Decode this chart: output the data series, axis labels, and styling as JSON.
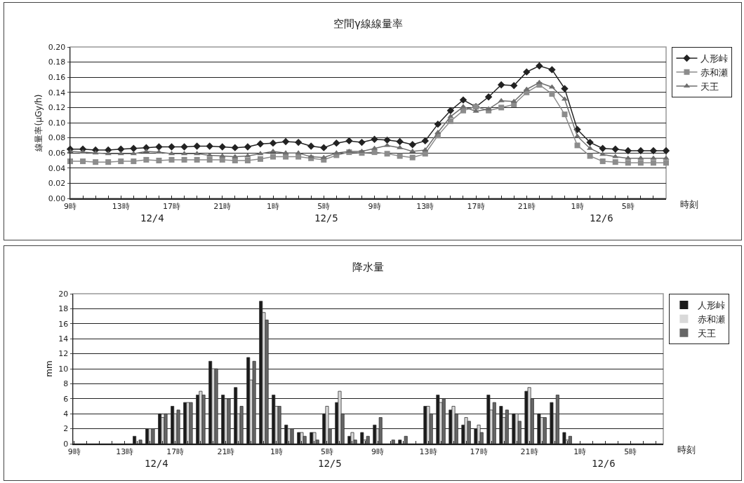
{
  "chart_data": [
    {
      "type": "line",
      "title": "空間γ線線量率",
      "ylabel": "線量率(μGy/h)",
      "xlabel": "時刻",
      "categories": [
        "9時",
        null,
        null,
        null,
        "13時",
        null,
        null,
        null,
        "17時",
        null,
        null,
        null,
        "21時",
        null,
        null,
        null,
        "1時",
        null,
        null,
        null,
        "5時",
        null,
        null,
        null,
        "9時",
        null,
        null,
        null,
        "13時",
        null,
        null,
        null,
        "17時",
        null,
        null,
        null,
        "21時",
        null,
        null,
        null,
        "1時",
        null,
        null,
        null,
        "5時",
        null,
        null,
        null
      ],
      "annotations": [
        "12/4",
        "12/5",
        "12/6"
      ],
      "ylim": [
        0,
        0.2
      ],
      "yticks": [
        {
          "value": 0,
          "label": "0.00"
        },
        {
          "value": 0.02,
          "label": "0.02"
        },
        {
          "value": 0.04,
          "label": "0.04"
        },
        {
          "value": 0.06,
          "label": "0.06"
        },
        {
          "value": 0.08,
          "label": "0.08"
        },
        {
          "value": 0.1,
          "label": "0.10"
        },
        {
          "value": 0.12,
          "label": "0.12"
        },
        {
          "value": 0.14,
          "label": "0.14"
        },
        {
          "value": 0.16,
          "label": "0.16"
        },
        {
          "value": 0.18,
          "label": "0.18"
        },
        {
          "value": 0.2,
          "label": "0.20"
        }
      ],
      "grid": "y",
      "legend": "right",
      "line_style": "solid",
      "series": [
        {
          "name": "人形峠",
          "color": "#222222",
          "marker": "diamond",
          "values": [
            0.065,
            0.065,
            0.064,
            0.064,
            0.065,
            0.066,
            0.067,
            0.068,
            0.068,
            0.068,
            0.069,
            0.069,
            0.068,
            0.067,
            0.068,
            0.072,
            0.073,
            0.075,
            0.074,
            0.069,
            0.067,
            0.073,
            0.076,
            0.074,
            0.078,
            0.077,
            0.075,
            0.071,
            0.076,
            0.098,
            0.116,
            0.13,
            0.121,
            0.134,
            0.15,
            0.149,
            0.167,
            0.175,
            0.17,
            0.145,
            0.091,
            0.074,
            0.066,
            0.065,
            0.063,
            0.063,
            0.063,
            0.063
          ]
        },
        {
          "name": "赤和瀬",
          "color": "#8c8c8c",
          "marker": "square",
          "values": [
            0.049,
            0.049,
            0.048,
            0.048,
            0.049,
            0.049,
            0.051,
            0.05,
            0.051,
            0.051,
            0.051,
            0.051,
            0.051,
            0.05,
            0.05,
            0.052,
            0.055,
            0.055,
            0.055,
            0.053,
            0.051,
            0.057,
            0.061,
            0.06,
            0.061,
            0.059,
            0.056,
            0.054,
            0.059,
            0.083,
            0.102,
            0.116,
            0.121,
            0.116,
            0.12,
            0.124,
            0.14,
            0.15,
            0.138,
            0.111,
            0.07,
            0.056,
            0.049,
            0.048,
            0.047,
            0.047,
            0.047,
            0.047
          ]
        },
        {
          "name": "天王",
          "color": "#6e6e6e",
          "marker": "triangle",
          "values": [
            0.062,
            0.061,
            0.06,
            0.059,
            0.059,
            0.059,
            0.062,
            0.061,
            0.059,
            0.059,
            0.059,
            0.057,
            0.056,
            0.055,
            0.056,
            0.059,
            0.062,
            0.06,
            0.06,
            0.055,
            0.054,
            0.06,
            0.062,
            0.062,
            0.066,
            0.07,
            0.067,
            0.062,
            0.064,
            0.087,
            0.108,
            0.121,
            0.115,
            0.118,
            0.129,
            0.128,
            0.144,
            0.153,
            0.147,
            0.131,
            0.082,
            0.066,
            0.058,
            0.055,
            0.053,
            0.053,
            0.053,
            0.053
          ]
        }
      ]
    },
    {
      "type": "bar",
      "title": "降水量",
      "ylabel": "mm",
      "xlabel": "時刻",
      "categories": [
        "9時",
        null,
        null,
        null,
        "13時",
        null,
        null,
        null,
        "17時",
        null,
        null,
        null,
        "21時",
        null,
        null,
        null,
        "1時",
        null,
        null,
        null,
        "5時",
        null,
        null,
        null,
        "9時",
        null,
        null,
        null,
        "13時",
        null,
        null,
        null,
        "17時",
        null,
        null,
        null,
        "21時",
        null,
        null,
        null,
        "1時",
        null,
        null,
        null,
        "5時",
        null,
        null
      ],
      "annotations": [
        "12/4",
        "12/5",
        "12/6"
      ],
      "ylim": [
        0,
        20
      ],
      "yticks": [
        0,
        2,
        4,
        6,
        8,
        10,
        12,
        14,
        16,
        18,
        20
      ],
      "grid": "y",
      "legend": "right",
      "series": [
        {
          "name": "人形峠",
          "color": "#1a1a1a",
          "values": [
            0,
            0,
            0,
            0,
            0,
            1,
            2,
            4,
            5,
            5.5,
            6.5,
            11,
            6.5,
            7.5,
            11.5,
            19,
            6.5,
            2.5,
            1.5,
            1.5,
            4,
            5.5,
            1,
            1.5,
            2.5,
            0,
            0.5,
            0,
            5,
            6.5,
            4.5,
            2.5,
            2,
            6.5,
            5,
            4,
            7,
            4,
            5.5,
            1.5,
            0,
            0,
            0,
            0,
            0,
            0,
            0
          ]
        },
        {
          "name": "赤和瀬",
          "color": "#d9d9d9",
          "values": [
            0,
            0,
            0,
            0,
            0,
            0,
            2,
            3.5,
            4,
            5.5,
            7,
            10,
            6,
            4,
            8.5,
            17.5,
            5,
            2,
            1.5,
            1.5,
            5,
            7,
            1.5,
            0.5,
            2,
            0,
            0,
            0,
            5,
            5.5,
            5,
            3.5,
            2.5,
            4.5,
            3.5,
            4,
            7.5,
            3.5,
            4,
            0.5,
            0,
            0,
            0,
            0,
            0,
            0,
            0
          ]
        },
        {
          "name": "天王",
          "color": "#666666",
          "values": [
            0,
            0,
            0,
            0,
            0,
            0.5,
            2,
            4,
            4.5,
            5.5,
            6.5,
            10,
            6,
            5,
            11,
            16.5,
            5,
            2,
            1,
            0.5,
            2,
            4,
            0.5,
            1,
            3.5,
            0.5,
            1,
            0,
            4,
            6,
            4,
            3,
            1.5,
            5.5,
            4.5,
            3,
            6,
            3.5,
            6.5,
            1,
            0,
            0,
            0,
            0,
            0,
            0,
            0
          ]
        }
      ]
    }
  ]
}
